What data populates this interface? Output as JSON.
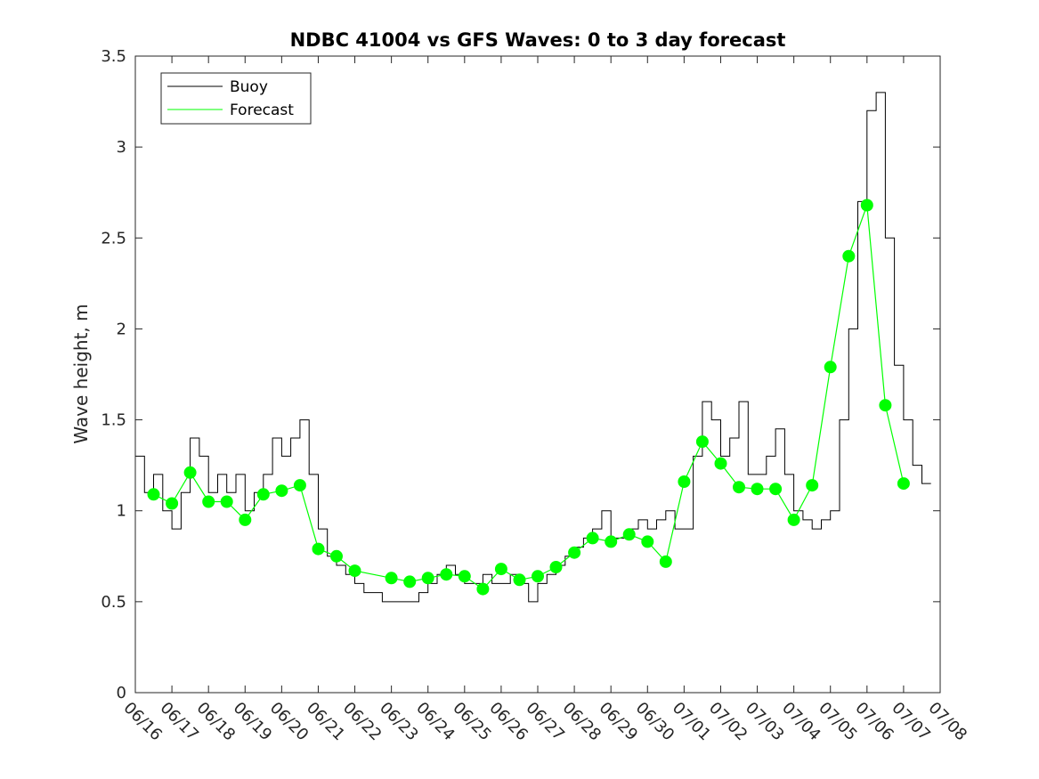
{
  "chart_data": {
    "type": "line",
    "title": "NDBC 41004 vs GFS Waves: 0 to 3 day forecast",
    "xlabel": "",
    "ylabel": "Wave height, m",
    "xlim": [
      "06/16",
      "07/08"
    ],
    "ylim": [
      0,
      3.5
    ],
    "yticks": [
      0,
      0.5,
      1,
      1.5,
      2,
      2.5,
      3,
      3.5
    ],
    "xtick_labels": [
      "06/16",
      "06/17",
      "06/18",
      "06/19",
      "06/20",
      "06/21",
      "06/22",
      "06/23",
      "06/24",
      "06/25",
      "06/26",
      "06/27",
      "06/28",
      "06/29",
      "06/30",
      "07/01",
      "07/02",
      "07/03",
      "07/04",
      "07/05",
      "07/06",
      "07/07",
      "07/08"
    ],
    "grid": false,
    "legend": {
      "position": "top-left",
      "entries": [
        "Buoy",
        "Forecast"
      ]
    },
    "colors": {
      "buoy": "#000000",
      "forecast": "#00ff00",
      "axis": "#262626"
    },
    "series": [
      {
        "name": "Buoy",
        "x": [
          "06/16 00:00",
          "06/16 06:00",
          "06/16 12:00",
          "06/16 18:00",
          "06/17 00:00",
          "06/17 06:00",
          "06/17 12:00",
          "06/17 18:00",
          "06/18 00:00",
          "06/18 06:00",
          "06/18 12:00",
          "06/18 18:00",
          "06/19 00:00",
          "06/19 06:00",
          "06/19 12:00",
          "06/19 18:00",
          "06/20 00:00",
          "06/20 06:00",
          "06/20 12:00",
          "06/20 18:00",
          "06/21 00:00",
          "06/21 06:00",
          "06/21 12:00",
          "06/21 18:00",
          "06/22 00:00",
          "06/22 06:00",
          "06/22 12:00",
          "06/22 18:00",
          "06/23 00:00",
          "06/23 06:00",
          "06/23 12:00",
          "06/23 18:00",
          "06/24 00:00",
          "06/24 06:00",
          "06/24 12:00",
          "06/24 18:00",
          "06/25 00:00",
          "06/25 06:00",
          "06/25 12:00",
          "06/25 18:00",
          "06/26 00:00",
          "06/26 06:00",
          "06/26 12:00",
          "06/26 18:00",
          "06/27 00:00",
          "06/27 06:00",
          "06/27 12:00",
          "06/27 18:00",
          "06/28 00:00",
          "06/28 06:00",
          "06/28 12:00",
          "06/28 18:00",
          "06/29 00:00",
          "06/29 06:00",
          "06/29 12:00",
          "06/29 18:00",
          "06/30 00:00",
          "06/30 06:00",
          "06/30 12:00",
          "06/30 18:00",
          "07/01 00:00",
          "07/01 06:00",
          "07/01 12:00",
          "07/01 18:00",
          "07/02 00:00",
          "07/02 06:00",
          "07/02 12:00",
          "07/02 18:00",
          "07/03 00:00",
          "07/03 06:00",
          "07/03 12:00",
          "07/03 18:00",
          "07/04 00:00",
          "07/04 06:00",
          "07/04 12:00",
          "07/04 18:00",
          "07/05 00:00",
          "07/05 06:00",
          "07/05 12:00",
          "07/05 18:00",
          "07/06 00:00",
          "07/06 06:00",
          "07/06 12:00",
          "07/06 18:00",
          "07/07 00:00",
          "07/07 06:00",
          "07/07 12:00"
        ],
        "values": [
          1.3,
          1.1,
          1.2,
          1.0,
          0.9,
          1.1,
          1.4,
          1.3,
          1.1,
          1.2,
          1.1,
          1.2,
          1.0,
          1.1,
          1.2,
          1.4,
          1.3,
          1.4,
          1.5,
          1.2,
          0.9,
          0.75,
          0.7,
          0.65,
          0.6,
          0.55,
          0.55,
          0.5,
          0.5,
          0.5,
          0.5,
          0.55,
          0.6,
          0.65,
          0.7,
          0.65,
          0.6,
          0.6,
          0.65,
          0.6,
          0.6,
          0.65,
          0.6,
          0.5,
          0.6,
          0.65,
          0.7,
          0.75,
          0.8,
          0.85,
          0.9,
          1.0,
          0.85,
          0.85,
          0.9,
          0.95,
          0.9,
          0.95,
          1.0,
          0.9,
          0.9,
          1.3,
          1.6,
          1.5,
          1.3,
          1.4,
          1.6,
          1.2,
          1.2,
          1.3,
          1.45,
          1.2,
          1.0,
          0.95,
          0.9,
          0.95,
          1.0,
          1.5,
          2.0,
          2.7,
          3.2,
          3.3,
          2.5,
          1.8,
          1.5,
          1.25,
          1.15
        ]
      },
      {
        "name": "Forecast",
        "x": [
          "06/16 12:00",
          "06/17 00:00",
          "06/17 12:00",
          "06/18 00:00",
          "06/18 12:00",
          "06/19 00:00",
          "06/19 12:00",
          "06/20 00:00",
          "06/20 12:00",
          "06/21 00:00",
          "06/21 12:00",
          "06/22 00:00",
          "06/23 00:00",
          "06/23 12:00",
          "06/24 00:00",
          "06/24 12:00",
          "06/25 00:00",
          "06/25 12:00",
          "06/26 00:00",
          "06/26 12:00",
          "06/27 00:00",
          "06/27 12:00",
          "06/28 00:00",
          "06/28 12:00",
          "06/29 00:00",
          "06/29 12:00",
          "06/30 00:00",
          "06/30 12:00",
          "07/01 00:00",
          "07/01 12:00",
          "07/02 00:00",
          "07/02 12:00",
          "07/03 00:00",
          "07/03 12:00",
          "07/04 00:00",
          "07/04 12:00",
          "07/05 00:00",
          "07/05 12:00",
          "07/06 00:00",
          "07/06 12:00",
          "07/07 00:00"
        ],
        "values": [
          1.09,
          1.04,
          1.21,
          1.05,
          1.05,
          0.95,
          1.09,
          1.11,
          1.14,
          0.79,
          0.75,
          0.67,
          0.63,
          0.61,
          0.63,
          0.65,
          0.64,
          0.57,
          0.68,
          0.62,
          0.64,
          0.69,
          0.77,
          0.85,
          0.83,
          0.87,
          0.83,
          0.72,
          1.16,
          1.38,
          1.26,
          1.13,
          1.12,
          1.12,
          0.95,
          1.14,
          1.79,
          2.4,
          2.68,
          1.58,
          1.15
        ]
      }
    ]
  }
}
